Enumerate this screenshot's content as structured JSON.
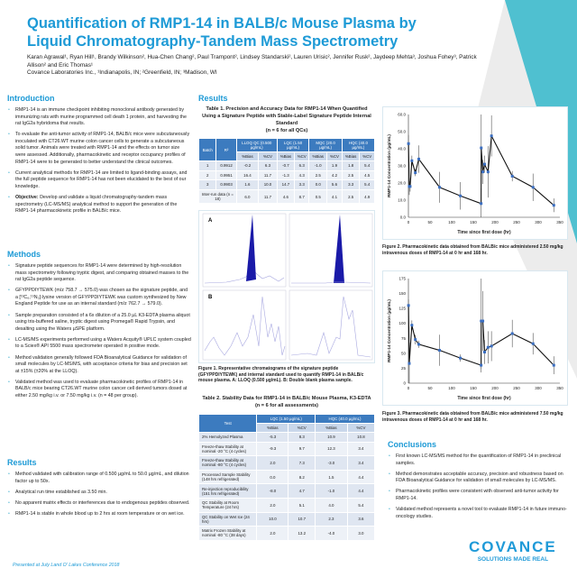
{
  "title": "Quantification of RMP1-14 in BALB/c Mouse Plasma by Liquid Chromatography-Tandem Mass Spectrometry",
  "authors": "Karan Agrawal¹, Ryan Hill¹, Brandy Wilkinson², Hua-Chen Chang², Paul Trampont², Lindsey Standarski², Lauren Urisic², Jennifer Rusk², Jaydeep Mehta³, Joshua Fohey³, Patrick Allison² and Eric Thomas¹",
  "affiliations": "Covance Laboratories Inc., ¹Indianapolis, IN; ²Greenfield, IN; ³Madison, WI",
  "introduction": {
    "heading": "Introduction",
    "bullets": [
      "RMP1-14 is an immune checkpoint inhibiting monoclonal antibody generated by immunizing rats with murine programmed cell death 1 protein, and harvesting the rat IgG2a hybridoma that results.",
      "To evaluate the anti-tumor activity of RMP1-14, BALB/c mice were subcutaneously inoculated with CT26.WT murine colon cancer cells to generate a subcutaneous solid tumor. Animals were treated with RMP1-14 and the effects on tumor size were assessed. Additionally, pharmacokinetic and receptor occupancy profiles of RMP1-14 were to be generated to better understand the clinical outcomes.",
      "Current analytical methods for RMP1-14 are limited to ligand-binding assays, and the full peptide sequence for RMP1-14 has not been elucidated to the best of our knowledge."
    ],
    "objective_label": "Objective:",
    "objective_text": " Develop and validate a liquid chromatography-tandem mass spectrometry (LC-MS/MS) analytical method to support the generation of the RMP1-14 pharmacokinetic profile in BALB/c mice."
  },
  "methods": {
    "heading": "Methods",
    "bullets": [
      "Signature peptide sequences for RMP1-14 were determined by high-resolution mass spectrometry following tryptic digest, and comparing obtained masses to the rat IgG2a peptide sequence.",
      "GFYPPDIYTEWK (m/z 758.7 → 575.0) was chosen as the signature peptide, and a [¹³C₆,¹⁵N₂]-lysine version of GFYPPDIYTEWK was custom synthesized by New England Peptide for use as an internal standard (m/z 762.7 → 579.0).",
      "Sample preparation consisted of a 6x dilution of a 25.0 µL K3-EDTA plasma aliquot using tris-buffered saline, tryptic digest using Promega® Rapid Trypsin, and desalting using the Waters µSPE platform.",
      "LC-MS/MS experiments performed using a Waters Acquity® UPLC system coupled to a Sciex® API 5500 mass spectrometer operated in positive mode.",
      "Method validation generally followed FDA Bioanalytical Guidance for validation of small molecules by LC-MS/MS, with acceptance criteria for bias and precision set at ±15% (±20% at the LLOQ).",
      "Validated method was used to evaluate pharmacokinetic profiles of RMP1-14 in BALB/c mice bearing CT26.WT murine colon cancer cell derived tumors dosed at either 2.50 mg/kg i.v. or 7.50 mg/kg i.v. (n = 48 per group)."
    ]
  },
  "results_left": {
    "heading": "Results",
    "bullets": [
      "Method validated with calibration range of 0.500 µg/mL to 50.0 µg/mL, and dilution factor up to 50x.",
      "Analytical run time established as 3.50 min.",
      "No apparent matrix effects or interferences due to endogenous peptides observed.",
      "RMP1-14 is stable in whole blood up to 2 hrs at room temperature or on wet ice."
    ]
  },
  "footer": "Presented at July Land O' Lakes Conference 2018",
  "results_mid": {
    "heading": "Results"
  },
  "table1": {
    "title": "Table 1. Precision and Accuracy Data for RMP1-14 When Quantified Using a Signature Peptide with Stable-Label Signature Peptide Internal Standard",
    "subtitle": "(n = 6 for all QCs)",
    "headers": [
      "Batch",
      "R²",
      "LLOQ QC (0.500 µg/mL)",
      "LQC (1.50 µg/mL)",
      "MQC (20.0 µg/mL)",
      "HQC (40.0 µg/mL)"
    ],
    "subheaders": [
      "%Bias",
      "%CV",
      "%Bias",
      "%CV",
      "%Bias",
      "%CV",
      "%Bias",
      "%CV"
    ],
    "rows": [
      [
        "1",
        "0.9912",
        "-0.2",
        "6.3",
        "-0.7",
        "6.3",
        "-1.0",
        "1.9",
        "1.8",
        "5.4"
      ],
      [
        "2",
        "0.9951",
        "16.4",
        "11.7",
        "-1.3",
        "4.3",
        "2.5",
        "4.2",
        "2.5",
        "4.5"
      ],
      [
        "3",
        "0.9903",
        "1.6",
        "10.0",
        "14.7",
        "3.3",
        "0.0",
        "5.6",
        "3.3",
        "5.4"
      ]
    ],
    "summary_row": [
      "Inter-run data (n = 18)",
      "6.0",
      "11.7",
      "4.6",
      "8.7",
      "0.5",
      "4.1",
      "2.5",
      "4.9"
    ]
  },
  "figure1": {
    "panel_a": "A",
    "panel_b": "B",
    "caption": "Figure 1. Representative chromatograms of the signature peptide (GFYPPDIYTEWK) and internal standard used to quantify RMP1-14 in BALB/c mouse plasma. A: LLOQ (0.500 µg/mL). B: Double blank plasma sample.",
    "peak_color": "#1a1aa8"
  },
  "table2": {
    "title": "Table 2. Stability Data for RMP1-14 in BALB/c Mouse Plasma, K3-EDTA",
    "subtitle": "(n = 6 for all assessments)",
    "headers": [
      "Test",
      "LQC (1.50 µg/mL)",
      "HQC (40.0 µg/mL)"
    ],
    "subheaders": [
      "%Bias",
      "%CV",
      "%Bias",
      "%CV"
    ],
    "rows": [
      [
        "2% Hemolyzed Plasma",
        "-5.3",
        "8.3",
        "10.9",
        "10.8"
      ],
      [
        "Freeze-thaw Stability at nominal -20 °C (4 cycles)",
        "-9.3",
        "9.7",
        "12.3",
        "3.4"
      ],
      [
        "Freeze-thaw Stability at nominal -80 °C (4 cycles)",
        "2.0",
        "7.3",
        "-3.0",
        "3.4"
      ],
      [
        "Processed Sample Stability (148 hrs refrigerated)",
        "0.0",
        "8.2",
        "1.5",
        "4.4"
      ],
      [
        "Re-injection reproducibility (151 hrs refrigerated)",
        "-8.0",
        "4.7",
        "-1.0",
        "4.4"
      ],
      [
        "QC Stability at Room Temperature (24 hrs)",
        "2.0",
        "5.1",
        "4.0",
        "5.4"
      ],
      [
        "QC Stability on Wet Ice (24 hrs)",
        "10.0",
        "10.7",
        "2.3",
        "3.6"
      ],
      [
        "Matrix Frozen Stability at nominal -80 °C (38 days)",
        "2.0",
        "13.2",
        "-4.0",
        "3.0"
      ]
    ]
  },
  "chart_data": [
    {
      "type": "line",
      "ylabel": "RMP1-14 Concentration (µg/mL)",
      "xlabel": "Time since first dose (hr)",
      "xlim": [
        0,
        350
      ],
      "ylim": [
        0,
        60
      ],
      "xticks": [
        "0",
        "50",
        "100",
        "150",
        "200",
        "250",
        "300",
        "350"
      ],
      "yticks": [
        "0.0",
        "10.0",
        "20.0",
        "30.0",
        "40.0",
        "50.0",
        "60.0"
      ],
      "x": [
        0.25,
        2,
        4,
        8,
        16,
        24,
        72,
        120,
        168,
        168.25,
        172,
        176,
        184,
        192,
        240,
        288,
        336
      ],
      "y": [
        43,
        18,
        18,
        33,
        26,
        34,
        17.5,
        12.5,
        8,
        40.5,
        26.5,
        31,
        26.5,
        47.5,
        24,
        17.5,
        7
      ],
      "error": [
        5,
        5,
        3,
        3,
        2,
        8,
        9,
        8,
        9,
        21,
        7,
        5,
        15,
        12,
        3,
        8,
        4
      ],
      "caption": "Figure 2. Pharmacokinetic data obtained from BALB/c mice administered 2.50 mg/kg intravenous doses of RMP1-14 at 0 hr and 168 hr.",
      "line_color": "#111111",
      "marker_color": "#3b6fc2"
    },
    {
      "type": "line",
      "ylabel": "RMP1-14 Concentration (µg/mL)",
      "xlabel": "Time since first dose (hr)",
      "xlim": [
        0,
        350
      ],
      "ylim": [
        0,
        175
      ],
      "xticks": [
        "0",
        "50",
        "100",
        "150",
        "200",
        "250",
        "300",
        "350"
      ],
      "yticks": [
        "0",
        "25",
        "50",
        "75",
        "100",
        "125",
        "150",
        "175"
      ],
      "x": [
        0.25,
        2,
        8,
        16,
        24,
        72,
        120,
        168,
        168.25,
        172,
        176,
        184,
        192,
        240,
        288,
        336
      ],
      "y": [
        130,
        33,
        97,
        73,
        65,
        55,
        42,
        30,
        104,
        104,
        52,
        60,
        62,
        83,
        66,
        30
      ],
      "error": [
        10,
        35,
        8,
        8,
        6,
        26,
        6,
        12,
        80,
        50,
        20,
        27,
        25,
        23,
        18,
        15
      ],
      "caption": "Figure 3. Pharmacokinetic data obtained from BALB/c mice administered 7.50 mg/kg intravenous doses of RMP1-14 at 0 hr and 168 hr.",
      "line_color": "#111111",
      "marker_color": "#3b6fc2"
    }
  ],
  "conclusions": {
    "heading": "Conclusions",
    "bullets": [
      "First known LC-MS/MS method for the quantification of RMP1-14 in preclinical samples.",
      "Method demonstrates acceptable accuracy, precision and robustness based on FDA Bioanalytical Guidance for validation of small molecules by LC-MS/MS.",
      "Pharmacokinetic profiles were consistent with observed anti-tumor activity for RMP1-14.",
      "Validated method represents a novel tool to evaluate RMP1-14 in future immuno-oncology studies."
    ]
  },
  "logo": {
    "name": "COVANCE",
    "tagline": "SOLUTIONS MADE REAL"
  },
  "colors": {
    "accent": "#1d9ad6",
    "teal": "#4fc0d0",
    "table_header": "#3c7bbf"
  }
}
